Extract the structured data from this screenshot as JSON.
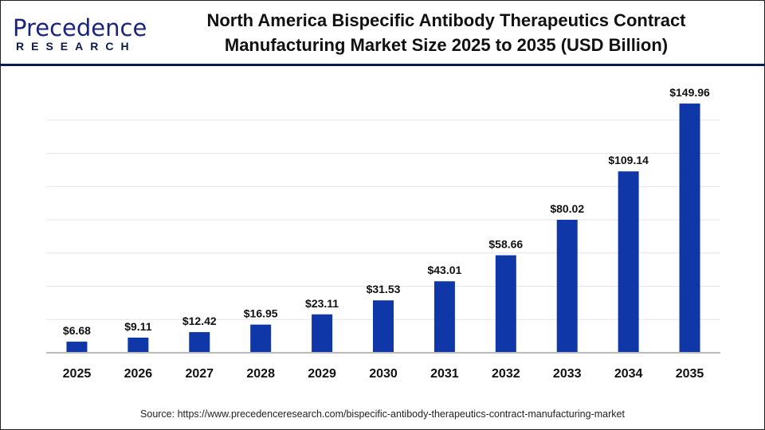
{
  "brand": {
    "logo_main": "Precedence",
    "logo_sub": "RESEARCH"
  },
  "title_line1": "North America Bispecific Antibody Therapeutics Contract",
  "title_line2": "Manufacturing Market Size 2025 to 2035 (USD Billion)",
  "source": "Source: https://www.precedenceresearch.com/bispecific-antibody-therapeutics-contract-manufacturing-market",
  "colors": {
    "bar": "#0f37a8",
    "grid": "#e6e6e6",
    "axis": "#bbbbbb"
  },
  "chart_data": {
    "type": "bar",
    "title": "North America Bispecific Antibody Therapeutics Contract Manufacturing Market Size 2025 to 2035 (USD Billion)",
    "categories": [
      "2025",
      "2026",
      "2027",
      "2028",
      "2029",
      "2030",
      "2031",
      "2032",
      "2033",
      "2034",
      "2035"
    ],
    "values": [
      6.68,
      9.11,
      12.42,
      16.95,
      23.11,
      31.53,
      43.01,
      58.66,
      80.02,
      109.14,
      149.96
    ],
    "labels": [
      "$6.68",
      "$9.11",
      "$12.42",
      "$16.95",
      "$23.11",
      "$31.53",
      "$43.01",
      "$58.66",
      "$80.02",
      "$109.14",
      "$149.96"
    ],
    "xlabel": "",
    "ylabel": "",
    "ylim": [
      0,
      160
    ],
    "grid": true,
    "y_tick_labels_shown": false
  }
}
